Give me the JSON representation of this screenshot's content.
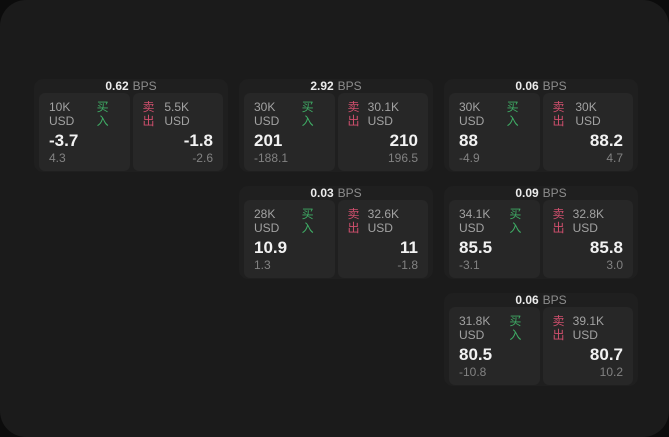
{
  "labels": {
    "bps_unit": "BPS",
    "buy": "买入",
    "sell": "卖出"
  },
  "colors": {
    "background": "#0c0c0c",
    "window": "#1b1b1b",
    "card": "#1f1f1f",
    "panel": "#272727",
    "buy_green": "#3fae66",
    "sell_red": "#cf4f6d"
  },
  "cards": [
    {
      "bps": "0.62",
      "buy": {
        "amount": "10K USD",
        "value": "-3.7",
        "sub": "4.3"
      },
      "sell": {
        "amount": "5.5K USD",
        "value": "-1.8",
        "sub": "-2.6"
      }
    },
    {
      "bps": "2.92",
      "buy": {
        "amount": "30K USD",
        "value": "201",
        "sub": "-188.1"
      },
      "sell": {
        "amount": "30.1K USD",
        "value": "210",
        "sub": "196.5"
      }
    },
    {
      "bps": "0.06",
      "buy": {
        "amount": "30K USD",
        "value": "88",
        "sub": "-4.9"
      },
      "sell": {
        "amount": "30K USD",
        "value": "88.2",
        "sub": "4.7"
      }
    },
    {
      "bps": "0.03",
      "buy": {
        "amount": "28K USD",
        "value": "10.9",
        "sub": "1.3"
      },
      "sell": {
        "amount": "32.6K USD",
        "value": "11",
        "sub": "-1.8"
      }
    },
    {
      "bps": "0.09",
      "buy": {
        "amount": "34.1K USD",
        "value": "85.5",
        "sub": "-3.1"
      },
      "sell": {
        "amount": "32.8K USD",
        "value": "85.8",
        "sub": "3.0"
      }
    },
    {
      "bps": "0.06",
      "buy": {
        "amount": "31.8K USD",
        "value": "80.5",
        "sub": "-10.8"
      },
      "sell": {
        "amount": "39.1K USD",
        "value": "80.7",
        "sub": "10.2"
      }
    }
  ]
}
